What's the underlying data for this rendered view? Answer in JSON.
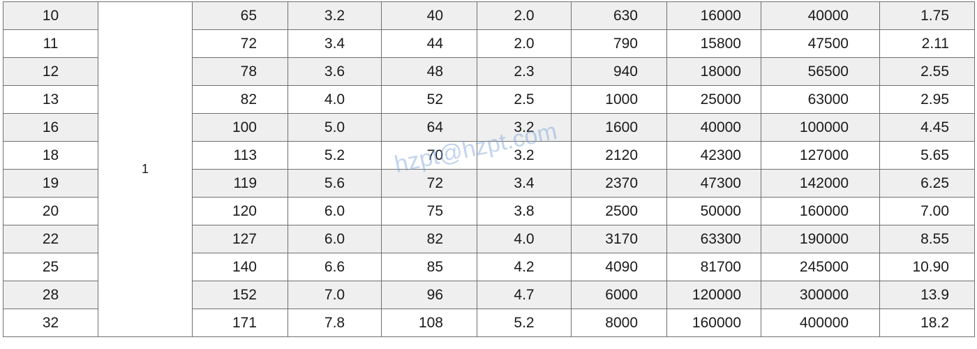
{
  "table": {
    "merged_value": "1",
    "rows": [
      {
        "shaded": true,
        "cells": [
          "10",
          "65",
          "3.2",
          "40",
          "2.0",
          "630",
          "16000",
          "40000",
          "1.75"
        ]
      },
      {
        "shaded": false,
        "cells": [
          "11",
          "72",
          "3.4",
          "44",
          "2.0",
          "790",
          "15800",
          "47500",
          "2.11"
        ]
      },
      {
        "shaded": true,
        "cells": [
          "12",
          "78",
          "3.6",
          "48",
          "2.3",
          "940",
          "18000",
          "56500",
          "2.55"
        ]
      },
      {
        "shaded": false,
        "cells": [
          "13",
          "82",
          "4.0",
          "52",
          "2.5",
          "1000",
          "25000",
          "63000",
          "2.95"
        ]
      },
      {
        "shaded": true,
        "cells": [
          "16",
          "100",
          "5.0",
          "64",
          "3.2",
          "1600",
          "40000",
          "100000",
          "4.45"
        ]
      },
      {
        "shaded": false,
        "cells": [
          "18",
          "113",
          "5.2",
          "70",
          "3.2",
          "2120",
          "42300",
          "127000",
          "5.65"
        ]
      },
      {
        "shaded": true,
        "cells": [
          "19",
          "119",
          "5.6",
          "72",
          "3.4",
          "2370",
          "47300",
          "142000",
          "6.25"
        ]
      },
      {
        "shaded": false,
        "cells": [
          "20",
          "120",
          "6.0",
          "75",
          "3.8",
          "2500",
          "50000",
          "160000",
          "7.00"
        ]
      },
      {
        "shaded": true,
        "cells": [
          "22",
          "127",
          "6.0",
          "82",
          "4.0",
          "3170",
          "63300",
          "190000",
          "8.55"
        ]
      },
      {
        "shaded": false,
        "cells": [
          "25",
          "140",
          "6.6",
          "85",
          "4.2",
          "4090",
          "81700",
          "245000",
          "10.90"
        ]
      },
      {
        "shaded": true,
        "cells": [
          "28",
          "152",
          "7.0",
          "96",
          "4.7",
          "6000",
          "120000",
          "300000",
          "13.9"
        ]
      },
      {
        "shaded": false,
        "cells": [
          "32",
          "171",
          "7.8",
          "108",
          "5.2",
          "8000",
          "160000",
          "400000",
          "18.2"
        ]
      }
    ]
  },
  "watermark": "hzpt@hzpt.com",
  "colors": {
    "shaded_row": "#efefef",
    "grid": "#6f6f6f",
    "watermark": "#78a0d7"
  }
}
